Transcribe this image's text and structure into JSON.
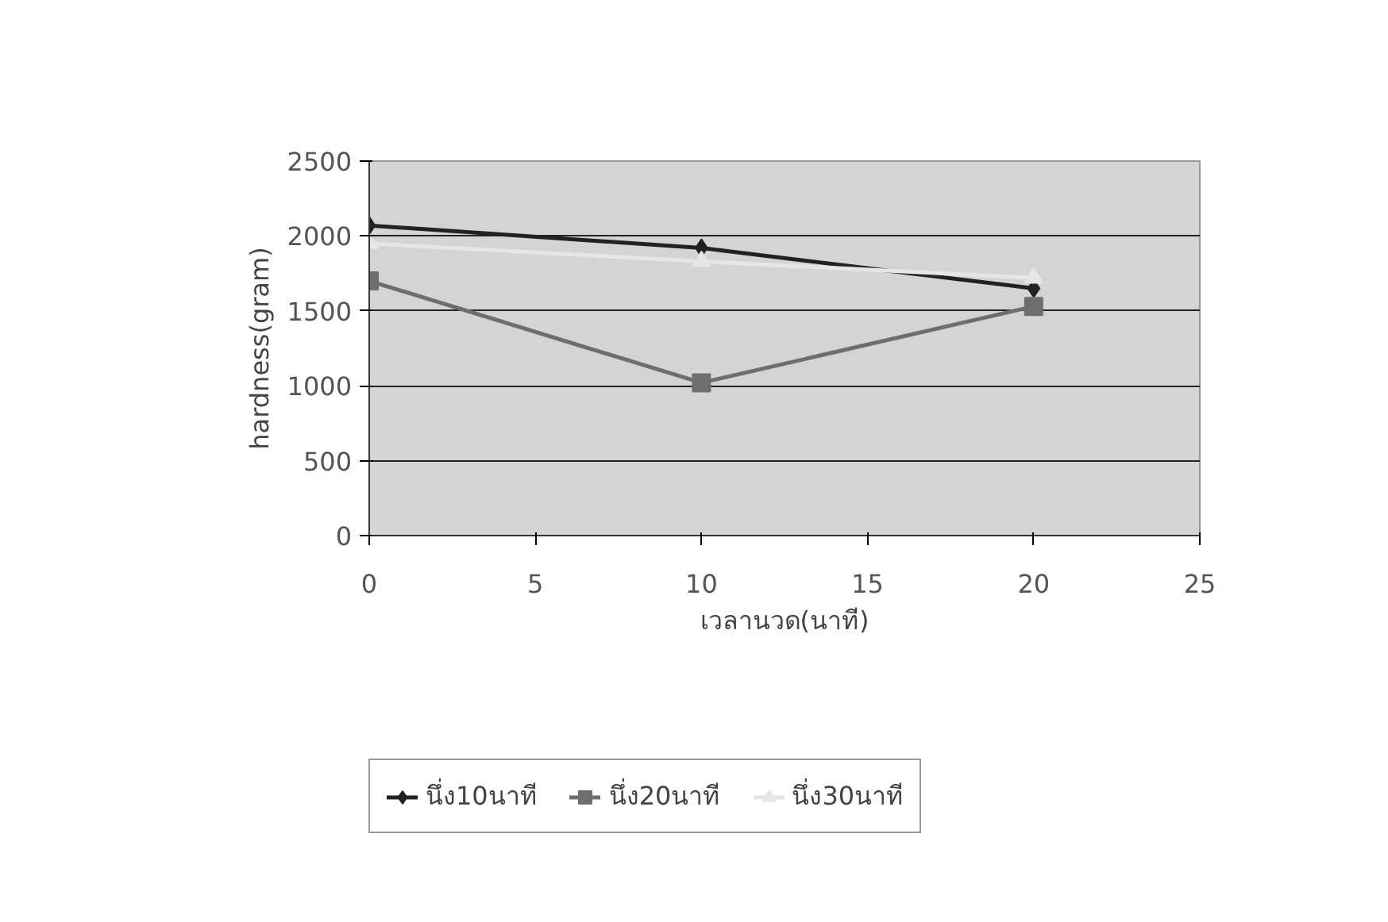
{
  "chart_data": {
    "type": "line",
    "xlabel": "เวลานวด(นาที)",
    "ylabel": "hardness(gram)",
    "x": [
      0,
      10,
      20
    ],
    "series": [
      {
        "name": "นึ่ง10นาที",
        "color": "#222222",
        "marker": "diamond",
        "values": [
          2070,
          1920,
          1650
        ]
      },
      {
        "name": "นึ่ง20นาที",
        "color": "#6e6e6e",
        "marker": "square",
        "values": [
          1700,
          1020,
          1530
        ]
      },
      {
        "name": "นึ่ง30นาที",
        "color": "#e6e6e6",
        "marker": "triangle",
        "values": [
          1950,
          1830,
          1720
        ]
      }
    ],
    "xlim": [
      0,
      25
    ],
    "xticks": [
      0,
      5,
      10,
      15,
      20,
      25
    ],
    "ylim": [
      0,
      2500
    ],
    "yticks": [
      0,
      500,
      1000,
      1500,
      2000,
      2500
    ],
    "grid": "y",
    "legend": "bottom",
    "line_style": "solid"
  }
}
